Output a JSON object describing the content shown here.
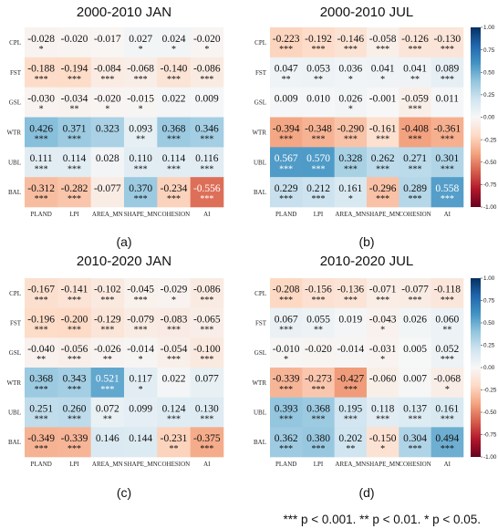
{
  "legend_note": "*** p < 0.001. ** p < 0.01. * p < 0.05.",
  "colorbar": {
    "ticks": [
      "1.00",
      "0.75",
      "0.50",
      "0.25",
      "0.00",
      "-0.25",
      "-0.50",
      "-0.75",
      "-1.00"
    ],
    "tick_values": [
      1.0,
      0.75,
      0.5,
      0.25,
      0.0,
      -0.25,
      -0.5,
      -0.75,
      -1.0
    ],
    "colors": [
      "#053061",
      "#2166ac",
      "#4393c3",
      "#92c5de",
      "#d1e5f0",
      "#f7f7f7",
      "#fddbc7",
      "#f4a582",
      "#d6604d",
      "#b2182b",
      "#67001f"
    ]
  },
  "chart_data": [
    {
      "type": "heatmap",
      "panel": "(a)",
      "title": "2000-2010 JAN",
      "rows": [
        "CPL",
        "FST",
        "GSL",
        "WTR",
        "UBL",
        "BAL"
      ],
      "cols": [
        "PLAND",
        "LPI",
        "AREA_MN",
        "SHAPE_MN",
        "COHESION",
        "AI"
      ],
      "values": [
        [
          -0.028,
          -0.02,
          -0.017,
          0.027,
          0.024,
          -0.02
        ],
        [
          -0.188,
          -0.194,
          -0.084,
          -0.068,
          -0.14,
          -0.086
        ],
        [
          -0.03,
          -0.034,
          -0.02,
          -0.015,
          0.022,
          0.009
        ],
        [
          0.426,
          0.371,
          0.323,
          0.093,
          0.368,
          0.346
        ],
        [
          0.111,
          0.114,
          0.028,
          0.11,
          0.114,
          0.116
        ],
        [
          -0.312,
          -0.282,
          -0.077,
          0.37,
          -0.234,
          -0.556
        ]
      ],
      "labels": [
        [
          "-0.028",
          "-0.020",
          "-0.017",
          "0.027",
          "0.024",
          "-0.020"
        ],
        [
          "-0.188",
          "-0.194",
          "-0.084",
          "-0.068",
          "-0.140",
          "-0.086"
        ],
        [
          "-0.030",
          "-0.034",
          "-0.020",
          "-0.015",
          "0.022",
          "0.009"
        ],
        [
          "0.426",
          "0.371",
          "0.323",
          "0.093",
          "0.368",
          "0.346"
        ],
        [
          "0.111",
          "0.114",
          "0.028",
          "0.110",
          "0.114",
          "0.116"
        ],
        [
          "-0.312",
          "-0.282",
          "-0.077",
          "0.370",
          "-0.234",
          "-0.556"
        ]
      ],
      "sig": [
        [
          "*",
          "",
          "",
          "*",
          "*",
          "*"
        ],
        [
          "***",
          "***",
          "***",
          "***",
          "***",
          "***"
        ],
        [
          "*",
          "**",
          "*",
          "*",
          "",
          ""
        ],
        [
          "***",
          "***",
          "",
          "**",
          "***",
          "***"
        ],
        [
          "***",
          "***",
          "",
          "***",
          "***",
          "***"
        ],
        [
          "***",
          "***",
          "",
          "***",
          "***",
          "***"
        ]
      ]
    },
    {
      "type": "heatmap",
      "panel": "(b)",
      "title": "2000-2010 JUL",
      "rows": [
        "CPL",
        "FST",
        "GSL",
        "WTR",
        "UBL",
        "BAL"
      ],
      "cols": [
        "PLAND",
        "LPI",
        "AREA_MN",
        "SHAPE_MN",
        "COHESION",
        "AI"
      ],
      "values": [
        [
          -0.223,
          -0.192,
          -0.146,
          -0.058,
          -0.126,
          -0.13
        ],
        [
          0.047,
          0.053,
          0.036,
          0.041,
          0.041,
          0.089
        ],
        [
          0.009,
          0.01,
          0.026,
          -0.001,
          -0.059,
          0.011
        ],
        [
          -0.394,
          -0.348,
          -0.29,
          -0.161,
          -0.408,
          -0.361
        ],
        [
          0.567,
          0.57,
          0.328,
          0.262,
          0.271,
          0.301
        ],
        [
          0.229,
          0.212,
          0.161,
          -0.296,
          0.289,
          0.558
        ]
      ],
      "labels": [
        [
          "-0.223",
          "-0.192",
          "-0.146",
          "-0.058",
          "-0.126",
          "-0.130"
        ],
        [
          "0.047",
          "0.053",
          "0.036",
          "0.041",
          "0.041",
          "0.089"
        ],
        [
          "0.009",
          "0.010",
          "0.026",
          "-0.001",
          "-0.059",
          "0.011"
        ],
        [
          "-0.394",
          "-0.348",
          "-0.290",
          "-0.161",
          "-0.408",
          "-0.361"
        ],
        [
          "0.567",
          "0.570",
          "0.328",
          "0.262",
          "0.271",
          "0.301"
        ],
        [
          "0.229",
          "0.212",
          "0.161",
          "-0.296",
          "0.289",
          "0.558"
        ]
      ],
      "sig": [
        [
          "***",
          "***",
          "***",
          "***",
          "***",
          "***"
        ],
        [
          "**",
          "**",
          "*",
          "*",
          "**",
          "***"
        ],
        [
          "",
          "",
          "*",
          "",
          "***",
          ""
        ],
        [
          "***",
          "***",
          "***",
          "***",
          "***",
          "***"
        ],
        [
          "***",
          "***",
          "***",
          "***",
          "***",
          "***"
        ],
        [
          "***",
          "***",
          "*",
          "***",
          "***",
          "***"
        ]
      ]
    },
    {
      "type": "heatmap",
      "panel": "(c)",
      "title": "2010-2020 JAN",
      "rows": [
        "CPL",
        "FST",
        "GSL",
        "WTR",
        "UBL",
        "BAL"
      ],
      "cols": [
        "PLAND",
        "LPI",
        "AREA_MN",
        "SHAPE_MN",
        "COHESION",
        "AI"
      ],
      "values": [
        [
          -0.167,
          -0.141,
          -0.102,
          -0.045,
          -0.029,
          -0.086
        ],
        [
          -0.196,
          -0.2,
          -0.129,
          -0.079,
          -0.083,
          -0.065
        ],
        [
          -0.04,
          -0.056,
          -0.026,
          -0.014,
          -0.054,
          -0.1
        ],
        [
          0.368,
          0.343,
          0.521,
          0.117,
          0.022,
          0.077
        ],
        [
          0.251,
          0.26,
          0.072,
          0.099,
          0.124,
          0.13
        ],
        [
          -0.349,
          -0.339,
          0.146,
          0.144,
          -0.231,
          -0.375
        ]
      ],
      "labels": [
        [
          "-0.167",
          "-0.141",
          "-0.102",
          "-0.045",
          "-0.029",
          "-0.086"
        ],
        [
          "-0.196",
          "-0.200",
          "-0.129",
          "-0.079",
          "-0.083",
          "-0.065"
        ],
        [
          "-0.040",
          "-0.056",
          "-0.026",
          "-0.014",
          "-0.054",
          "-0.100"
        ],
        [
          "0.368",
          "0.343",
          "0.521",
          "0.117",
          "0.022",
          "0.077"
        ],
        [
          "0.251",
          "0.260",
          "0.072",
          "0.099",
          "0.124",
          "0.130"
        ],
        [
          "-0.349",
          "-0.339",
          "0.146",
          "0.144",
          "-0.231",
          "-0.375"
        ]
      ],
      "sig": [
        [
          "***",
          "***",
          "***",
          "***",
          "*",
          "***"
        ],
        [
          "***",
          "***",
          "***",
          "***",
          "***",
          "***"
        ],
        [
          "**",
          "***",
          "**",
          "*",
          "***",
          "***"
        ],
        [
          "***",
          "***",
          "***",
          "*",
          "",
          ""
        ],
        [
          "***",
          "***",
          "**",
          "",
          "***",
          "***"
        ],
        [
          "***",
          "***",
          "",
          "",
          "**",
          "***"
        ]
      ]
    },
    {
      "type": "heatmap",
      "panel": "(d)",
      "title": "2010-2020 JUL",
      "rows": [
        "CPL",
        "FST",
        "GSL",
        "WTR",
        "UBL",
        "BAL"
      ],
      "cols": [
        "PLAND",
        "LPI",
        "AREA_MN",
        "SHAPE_MN",
        "COHESION",
        "AI"
      ],
      "values": [
        [
          -0.208,
          -0.156,
          -0.136,
          -0.071,
          -0.077,
          -0.118
        ],
        [
          0.067,
          0.055,
          0.019,
          -0.043,
          0.026,
          0.06
        ],
        [
          -0.01,
          -0.02,
          -0.014,
          -0.031,
          0.005,
          0.052
        ],
        [
          -0.339,
          -0.273,
          -0.427,
          -0.06,
          0.007,
          -0.068
        ],
        [
          0.393,
          0.368,
          0.195,
          0.118,
          0.137,
          0.161
        ],
        [
          0.362,
          0.38,
          0.202,
          -0.15,
          0.304,
          0.494
        ]
      ],
      "labels": [
        [
          "-0.208",
          "-0.156",
          "-0.136",
          "-0.071",
          "-0.077",
          "-0.118"
        ],
        [
          "0.067",
          "0.055",
          "0.019",
          "-0.043",
          "0.026",
          "0.060"
        ],
        [
          "-0.010",
          "-0.020",
          "-0.014",
          "-0.031",
          "0.005",
          "0.052"
        ],
        [
          "-0.339",
          "-0.273",
          "-0.427",
          "-0.060",
          "0.007",
          "-0.068"
        ],
        [
          "0.393",
          "0.368",
          "0.195",
          "0.118",
          "0.137",
          "0.161"
        ],
        [
          "0.362",
          "0.380",
          "0.202",
          "-0.150",
          "0.304",
          "0.494"
        ]
      ],
      "sig": [
        [
          "***",
          "***",
          "***",
          "***",
          "***",
          "***"
        ],
        [
          "***",
          "**",
          "",
          "*",
          "",
          "**"
        ],
        [
          "*",
          "",
          "",
          "*",
          "",
          "***"
        ],
        [
          "***",
          "***",
          "***",
          "",
          "",
          "*"
        ],
        [
          "***",
          "***",
          "***",
          "***",
          "***",
          "***"
        ],
        [
          "***",
          "***",
          "**",
          "*",
          "***",
          "***"
        ]
      ]
    }
  ]
}
